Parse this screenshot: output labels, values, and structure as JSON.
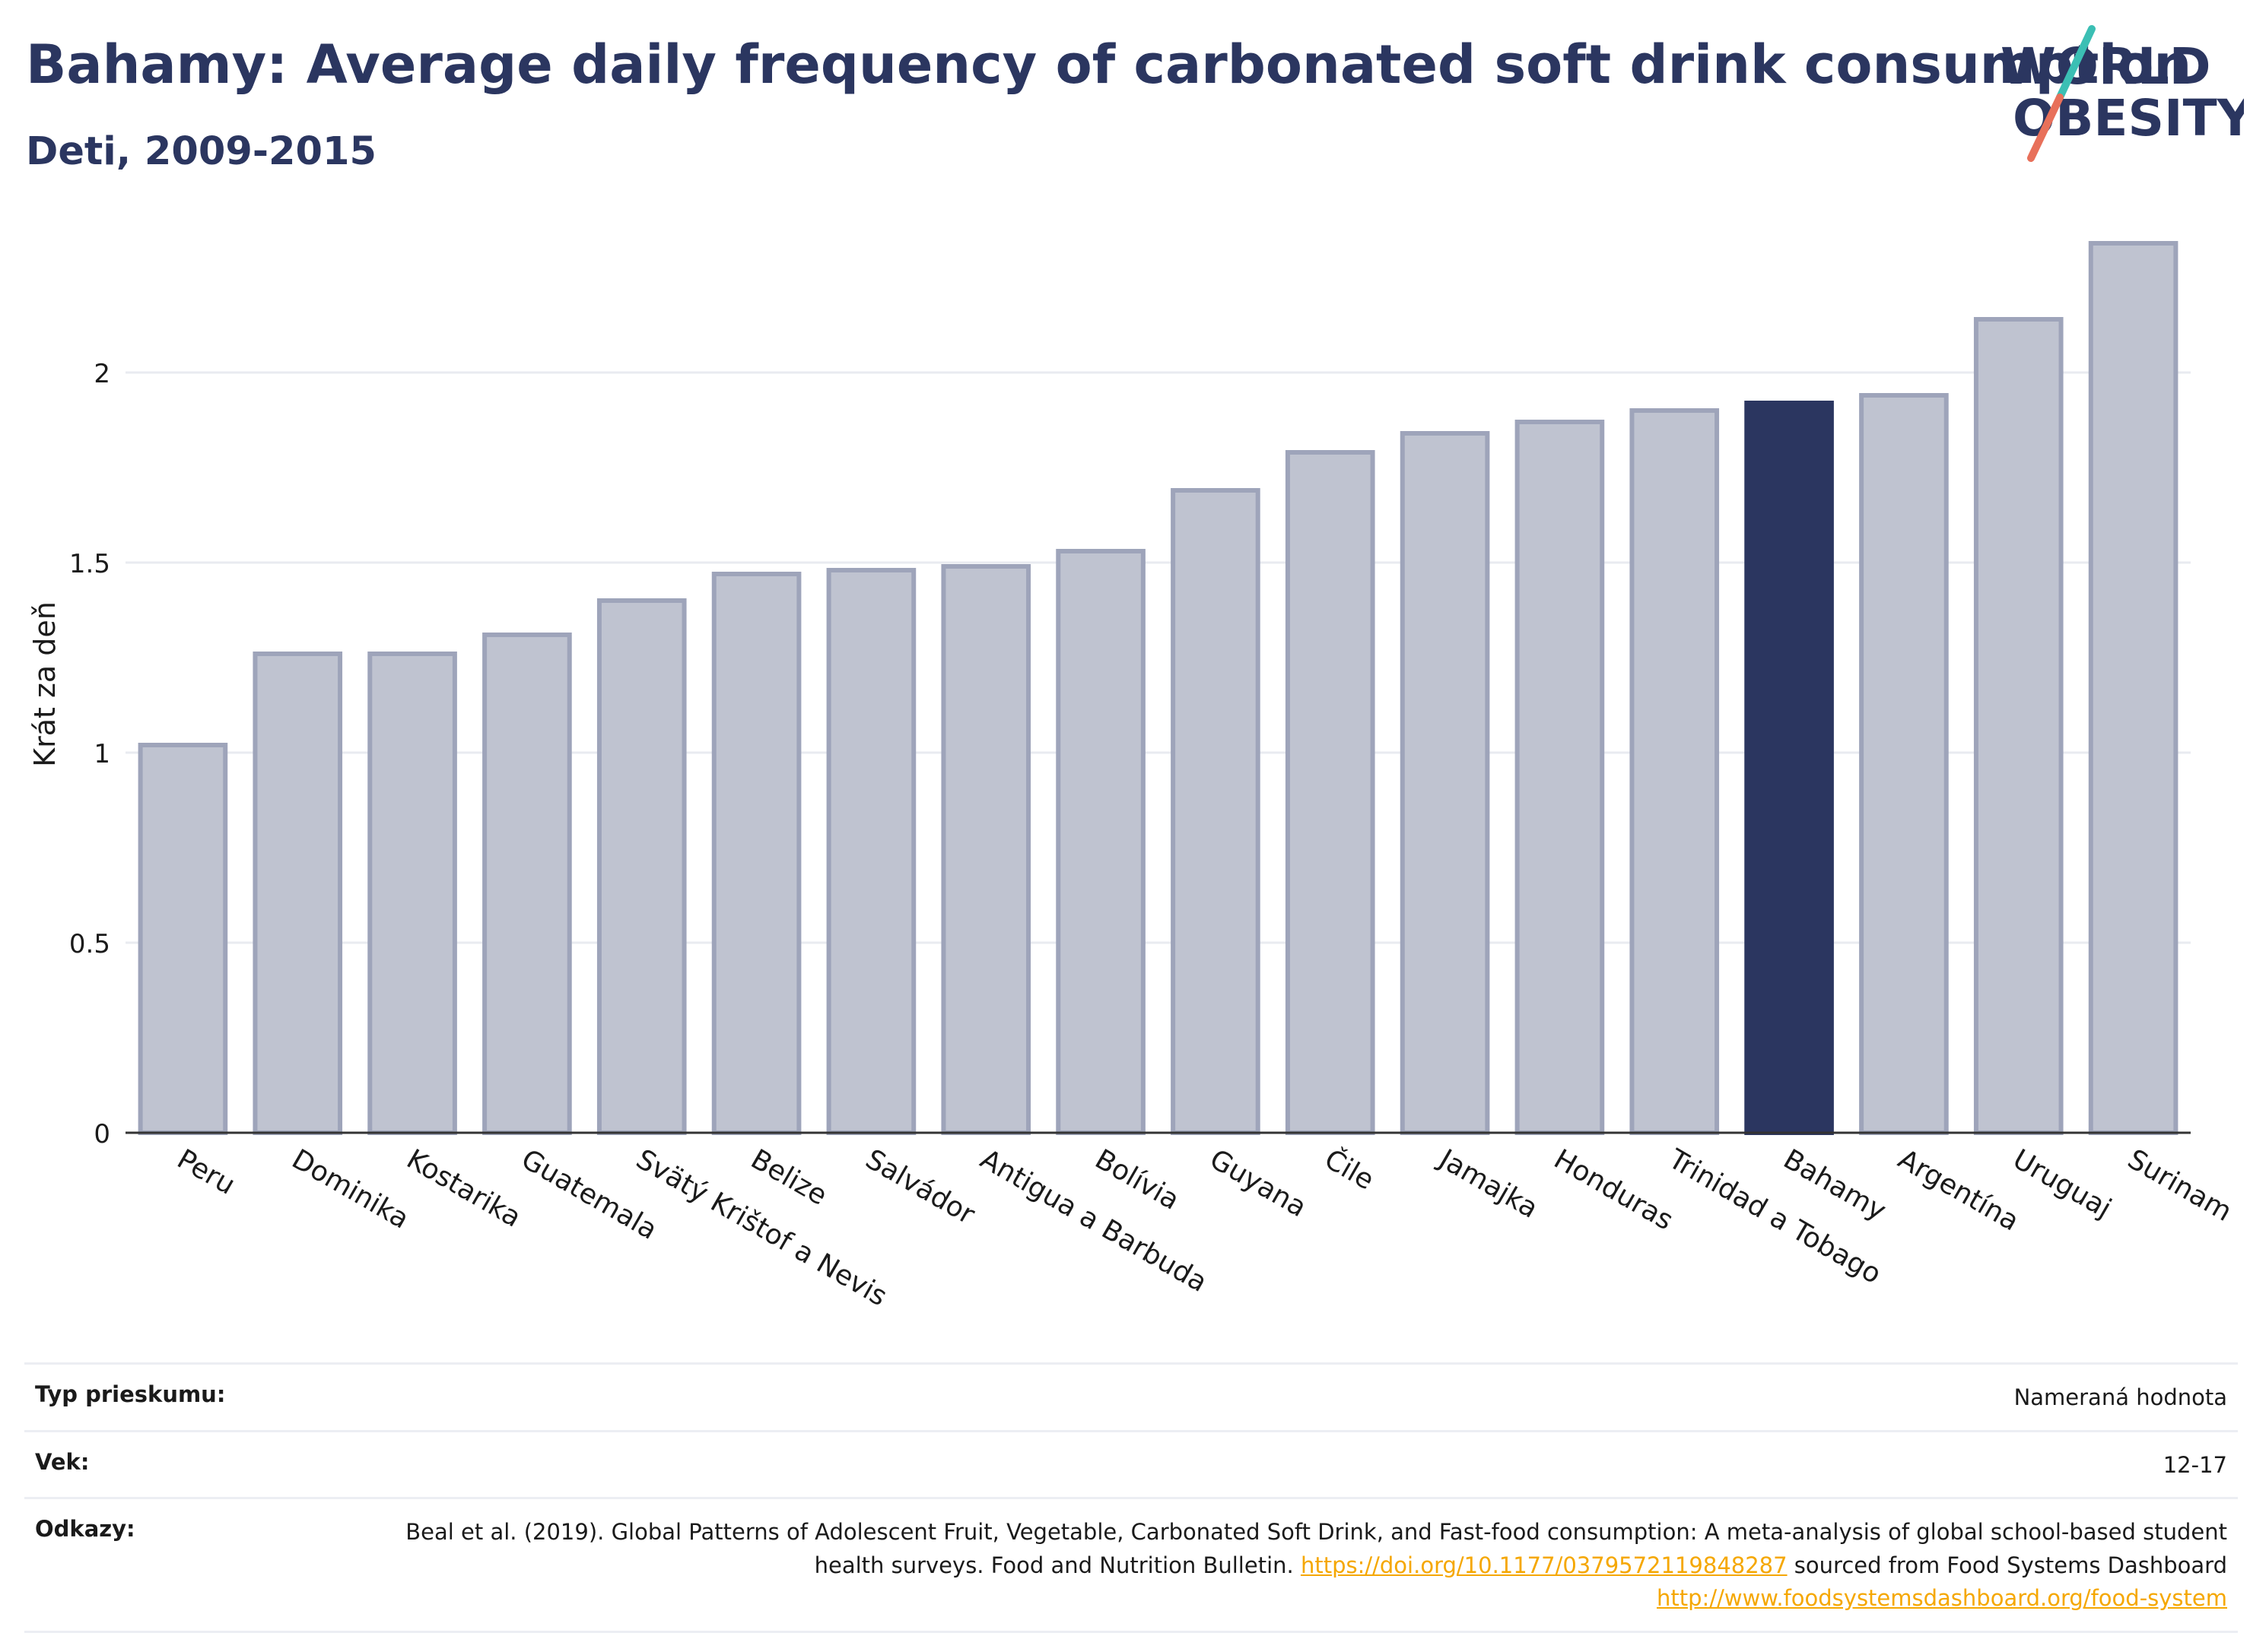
{
  "title": "Bahamy: Average daily frequency of carbonated soft drink consumption",
  "subtitle": "Deti, 2009-2015",
  "logo": {
    "line1": "WORLD",
    "line2": "OBESITY",
    "colors": {
      "text": "#2b3660",
      "slash_top": "#3bbfb4",
      "slash_bottom": "#e8705a"
    }
  },
  "colors": {
    "bar": "#bfc3d0",
    "bar_border": "#9ea4ba",
    "highlight": "#2b3660",
    "grid": "#e9ebf0",
    "axis": "#333333"
  },
  "chart_data": {
    "type": "bar",
    "ylabel": "Krát za deň",
    "ylim": [
      0,
      2.4
    ],
    "yticks": [
      "0",
      "0.5",
      "1",
      "1.5",
      "2"
    ],
    "grid": true,
    "highlight": "Bahamy",
    "categories": [
      "Peru",
      "Dominika",
      "Kostarika",
      "Guatemala",
      "Svätý Krištof a Nevis",
      "Belize",
      "Salvádor",
      "Antigua a Barbuda",
      "Bolívia",
      "Guyana",
      "Čile",
      "Jamajka",
      "Honduras",
      "Trinidad a Tobago",
      "Bahamy",
      "Argentína",
      "Uruguaj",
      "Surinam"
    ],
    "values": [
      1.02,
      1.26,
      1.26,
      1.31,
      1.4,
      1.47,
      1.48,
      1.49,
      1.53,
      1.69,
      1.79,
      1.84,
      1.87,
      1.9,
      1.92,
      1.94,
      2.14,
      2.34
    ]
  },
  "meta": [
    {
      "key": "Typ prieskumu:",
      "value": "Nameraná hodnota"
    },
    {
      "key": "Vek:",
      "value": "12-17"
    },
    {
      "key": "Odkazy:",
      "value": "Beal et al. (2019). Global Patterns of Adolescent Fruit, Vegetable, Carbonated Soft Drink, and Fast-food consumption: A meta-analysis of global school-based student health surveys. Food and Nutrition Bulletin.",
      "link1": "https://doi.org/10.1177/0379572119848287",
      "middle": "sourced from Food Systems Dashboard",
      "link2": "http://www.foodsystemsdashboard.org/food-system"
    }
  ]
}
